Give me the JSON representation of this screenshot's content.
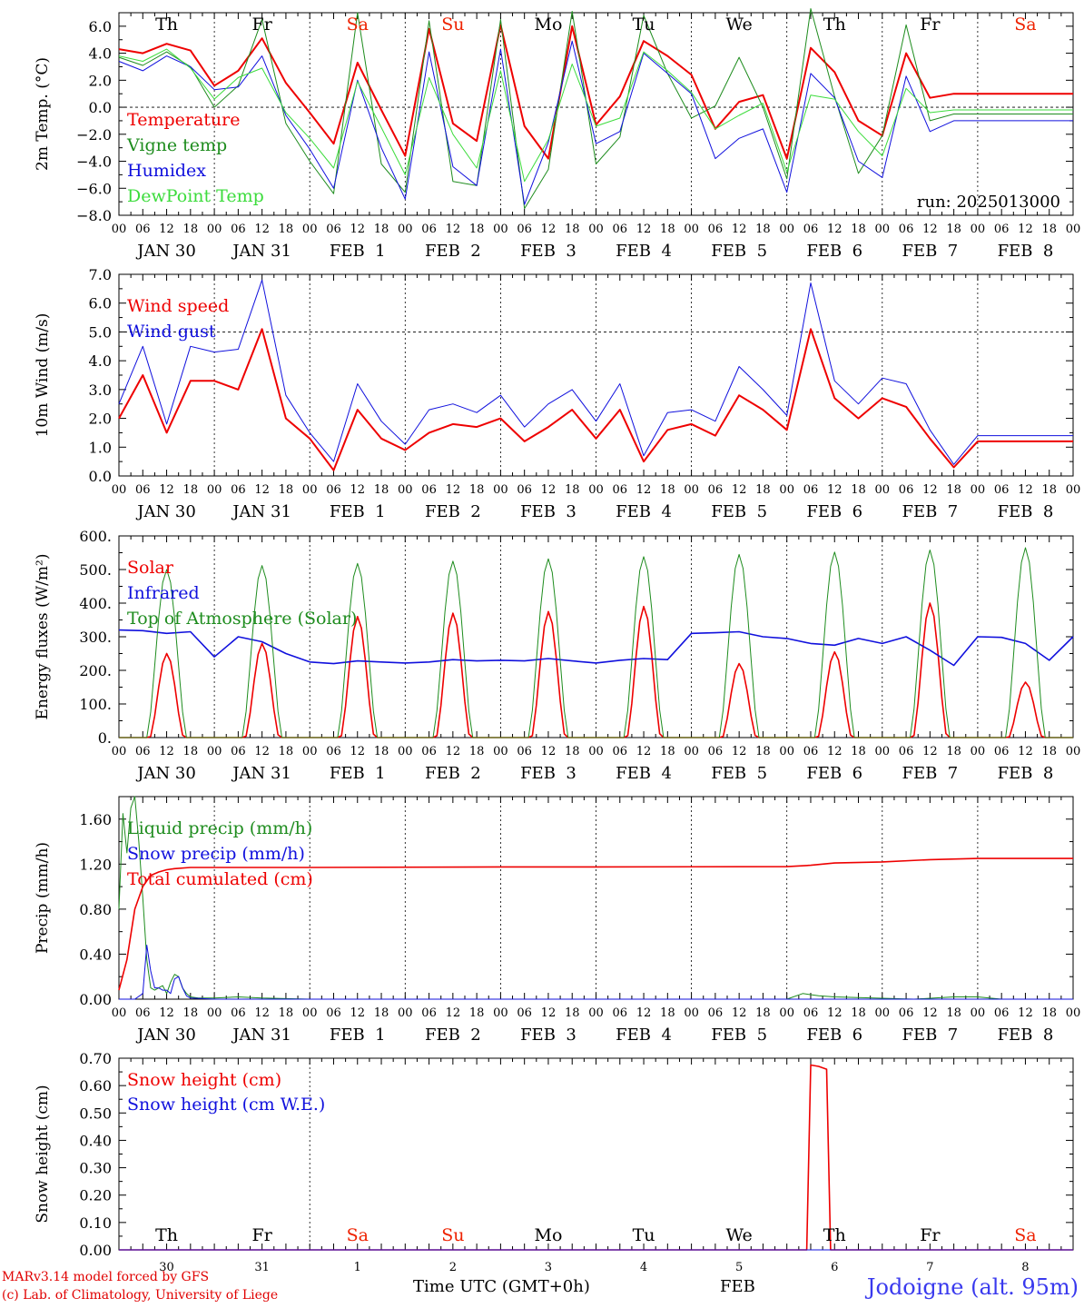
{
  "colors": {
    "red": "#ee0000",
    "green": "#1e8c1e",
    "blue": "#1010dd",
    "light_green": "#3cdc3c",
    "weekend": "#ee2200"
  },
  "day_names": [
    "Th",
    "Fr",
    "Sa",
    "Su",
    "Mo",
    "Tu",
    "We",
    "Th",
    "Fr",
    "Sa"
  ],
  "weekend_flags": [
    false,
    false,
    true,
    true,
    false,
    false,
    false,
    false,
    false,
    true
  ],
  "date_labels": [
    "JAN 30",
    "JAN 31",
    "FEB  1",
    "FEB  2",
    "FEB  3",
    "FEB  4",
    "FEB  5",
    "FEB  6",
    "FEB  7",
    "FEB  8"
  ],
  "hour_ticks": [
    "00",
    "06",
    "12",
    "18"
  ],
  "bottom_day_numbers": [
    "30",
    "31",
    "1",
    "2",
    "3",
    "4",
    "5",
    "6",
    "7",
    "8"
  ],
  "footer": {
    "model": "MARv3.14 model forced by GFS",
    "credit": "(c) Lab. of Climatology, University of Liege",
    "time_label": "Time UTC (GMT+0h)",
    "month_label": "FEB",
    "station": "Jodoigne (alt. 95m)"
  },
  "chart_data": [
    {
      "type": "line",
      "ylabel": "2m Temp. (°C)",
      "ylim": [
        -8,
        7
      ],
      "ytick_values": [
        6,
        4,
        2,
        0,
        -2,
        -4,
        -6,
        -8
      ],
      "ytick_labels": [
        "6.0",
        "4.0",
        "2.0",
        "0.0",
        "−2.0",
        "−4.0",
        "−6.0",
        "−8.0"
      ],
      "ref_line": 0,
      "annotation": "run: 2025013000",
      "x_hours": [
        0,
        6,
        12,
        18,
        24,
        30,
        36,
        42,
        48,
        54,
        60,
        66,
        72,
        78,
        84,
        90,
        96,
        102,
        108,
        114,
        120,
        126,
        132,
        138,
        144,
        150,
        156,
        162,
        168,
        174,
        180,
        186,
        192,
        198,
        204,
        210,
        216,
        222,
        228,
        234,
        240
      ],
      "series": [
        {
          "name": "Temperature",
          "color": "red",
          "width": 2,
          "values": [
            4.3,
            4.0,
            4.7,
            4.2,
            1.6,
            2.7,
            5.1,
            1.8,
            -0.4,
            -2.7,
            3.3,
            -0.2,
            -3.6,
            5.8,
            -1.2,
            -2.5,
            6.1,
            -1.4,
            -3.8,
            6.0,
            -1.3,
            0.8,
            4.9,
            3.8,
            2.4,
            -1.6,
            0.4,
            0.9,
            -3.8,
            4.4,
            2.6,
            -1.0,
            -2.1,
            4.0,
            0.7,
            1.0,
            1.0,
            1.0,
            1.0,
            1.0,
            1.0
          ]
        },
        {
          "name": "Vigne temp",
          "color": "green",
          "width": 1,
          "values": [
            3.7,
            3.1,
            4.1,
            3.0,
            0.0,
            1.6,
            6.5,
            -1.2,
            -4.0,
            -6.4,
            7.0,
            -4.2,
            -6.3,
            6.4,
            -5.5,
            -5.8,
            6.5,
            -7.5,
            -4.6,
            7.1,
            -4.2,
            -2.2,
            6.8,
            2.5,
            -0.8,
            0.1,
            3.7,
            0.0,
            -5.3,
            7.3,
            0.8,
            -4.9,
            -2.1,
            6.1,
            -1.0,
            -0.5,
            -0.5,
            -0.5,
            -0.5,
            -0.5,
            -0.5
          ]
        },
        {
          "name": "Humidex",
          "color": "blue",
          "width": 1,
          "values": [
            3.4,
            2.7,
            3.8,
            3.0,
            1.3,
            1.5,
            3.8,
            -0.6,
            -3.1,
            -6.0,
            2.0,
            -3.0,
            -6.8,
            4.1,
            -4.4,
            -5.8,
            4.3,
            -7.2,
            -2.6,
            4.9,
            -2.7,
            -1.8,
            4.0,
            2.5,
            1.0,
            -3.8,
            -2.3,
            -1.6,
            -6.3,
            2.5,
            0.7,
            -4.0,
            -5.2,
            2.3,
            -1.8,
            -1.0,
            -1.0,
            -1.0,
            -1.0,
            -1.0,
            -1.0
          ]
        },
        {
          "name": "DewPoint Temp",
          "color": "light_green",
          "width": 1,
          "values": [
            3.8,
            3.4,
            4.3,
            2.9,
            0.6,
            2.2,
            2.9,
            -0.4,
            -2.3,
            -4.5,
            1.9,
            -1.5,
            -5.0,
            2.2,
            -2.0,
            -4.5,
            2.7,
            -5.5,
            -2.4,
            3.2,
            -1.4,
            -0.8,
            4.1,
            2.7,
            1.1,
            -1.6,
            -0.6,
            0.3,
            -4.8,
            0.9,
            0.6,
            -1.8,
            -3.6,
            1.4,
            -0.4,
            -0.2,
            -0.2,
            -0.2,
            -0.2,
            -0.2,
            -0.2
          ]
        }
      ]
    },
    {
      "type": "line",
      "ylabel": "10m Wind (m/s)",
      "ylim": [
        0,
        7
      ],
      "ytick_values": [
        7,
        6,
        5,
        4,
        3,
        2,
        1,
        0
      ],
      "ytick_labels": [
        "7.0",
        "6.0",
        "5.0",
        "4.0",
        "3.0",
        "2.0",
        "1.0",
        "0.0"
      ],
      "ref_line": 5,
      "x_hours": [
        0,
        6,
        12,
        18,
        24,
        30,
        36,
        42,
        48,
        54,
        60,
        66,
        72,
        78,
        84,
        90,
        96,
        102,
        108,
        114,
        120,
        126,
        132,
        138,
        144,
        150,
        156,
        162,
        168,
        174,
        180,
        186,
        192,
        198,
        204,
        210,
        216,
        222,
        228,
        234,
        240
      ],
      "series": [
        {
          "name": "Wind speed",
          "color": "red",
          "width": 2,
          "values": [
            2.0,
            3.5,
            1.5,
            3.3,
            3.3,
            3.0,
            5.1,
            2.0,
            1.3,
            0.2,
            2.3,
            1.3,
            0.9,
            1.5,
            1.8,
            1.7,
            2.0,
            1.2,
            1.7,
            2.3,
            1.3,
            2.3,
            0.5,
            1.6,
            1.8,
            1.4,
            2.8,
            2.3,
            1.6,
            5.1,
            2.7,
            2.0,
            2.7,
            2.4,
            1.3,
            0.3,
            1.2,
            1.2,
            1.2,
            1.2,
            1.2
          ]
        },
        {
          "name": "Wind gust",
          "color": "blue",
          "width": 1,
          "values": [
            2.5,
            4.5,
            1.8,
            4.5,
            4.3,
            4.4,
            6.8,
            2.8,
            1.5,
            0.5,
            3.2,
            1.9,
            1.1,
            2.3,
            2.5,
            2.2,
            2.8,
            1.7,
            2.5,
            3.0,
            1.9,
            3.2,
            0.7,
            2.2,
            2.3,
            1.9,
            3.8,
            3.0,
            2.1,
            6.7,
            3.3,
            2.5,
            3.4,
            3.2,
            1.6,
            0.4,
            1.4,
            1.4,
            1.4,
            1.4,
            1.4
          ]
        }
      ]
    },
    {
      "type": "line",
      "ylabel": "Energy fluxes (W/m²)",
      "ylim": [
        0,
        600
      ],
      "ytick_values": [
        600,
        500,
        400,
        300,
        200,
        100,
        0
      ],
      "ytick_labels": [
        "600.",
        "500.",
        "400.",
        "300.",
        "200.",
        "100.",
        "0."
      ],
      "diurnal": true,
      "daily_solar_peak": [
        250,
        280,
        360,
        370,
        375,
        390,
        220,
        255,
        400,
        165
      ],
      "daily_toa_peak": [
        500,
        512,
        518,
        525,
        532,
        538,
        545,
        552,
        558,
        565
      ],
      "series": [
        {
          "name": "Solar",
          "color": "red",
          "width": 1.6
        },
        {
          "name": "Infrared",
          "color": "blue",
          "width": 1.6,
          "x_hours": [
            0,
            6,
            12,
            18,
            24,
            30,
            36,
            42,
            48,
            54,
            60,
            66,
            72,
            78,
            84,
            90,
            96,
            102,
            108,
            114,
            120,
            126,
            132,
            138,
            144,
            150,
            156,
            162,
            168,
            174,
            180,
            186,
            192,
            198,
            204,
            210,
            216,
            222,
            228,
            234,
            240
          ],
          "values": [
            320,
            318,
            310,
            315,
            240,
            300,
            285,
            250,
            225,
            220,
            228,
            225,
            222,
            225,
            232,
            228,
            230,
            228,
            235,
            228,
            222,
            230,
            235,
            232,
            310,
            312,
            315,
            300,
            295,
            280,
            275,
            295,
            280,
            300,
            260,
            215,
            300,
            298,
            280,
            230,
            300
          ]
        },
        {
          "name": "Top of Atmosphere (Solar)",
          "color": "green",
          "width": 1
        }
      ]
    },
    {
      "type": "line",
      "ylabel": "Precip (mm/h)",
      "ylim": [
        0,
        1.8
      ],
      "ytick_values": [
        1.6,
        1.2,
        0.8,
        0.4,
        0
      ],
      "ytick_labels": [
        "1.60",
        "1.20",
        "0.80",
        "0.40",
        "0.00"
      ],
      "series": [
        {
          "name": "Liquid precip (mm/h)",
          "color": "green",
          "width": 1,
          "x_hours": [
            0,
            1,
            2,
            3,
            4,
            5,
            6,
            7,
            8,
            9,
            10,
            11,
            12,
            13,
            14,
            15,
            16,
            17,
            18,
            20,
            24,
            30,
            36,
            48,
            60,
            72,
            96,
            120,
            144,
            168,
            172,
            176,
            180,
            190,
            200,
            210,
            216,
            222,
            240
          ],
          "values": [
            0.8,
            1.65,
            1.3,
            1.7,
            1.8,
            1.4,
            0.9,
            0.35,
            0.1,
            0.08,
            0.1,
            0.12,
            0.05,
            0.15,
            0.22,
            0.2,
            0.1,
            0.05,
            0.02,
            0.01,
            0.01,
            0.02,
            0.01,
            0.0,
            0.0,
            0.0,
            0.0,
            0.0,
            0.0,
            0.0,
            0.05,
            0.03,
            0.02,
            0.01,
            0.0,
            0.02,
            0.02,
            0.0,
            0.0
          ]
        },
        {
          "name": "Snow precip (mm/h)",
          "color": "blue",
          "width": 1,
          "x_hours": [
            0,
            4,
            6,
            7,
            8,
            9,
            10,
            11,
            12,
            13,
            14,
            15,
            16,
            17,
            18,
            24,
            240
          ],
          "values": [
            0.0,
            0.0,
            0.05,
            0.48,
            0.25,
            0.1,
            0.1,
            0.08,
            0.08,
            0.05,
            0.18,
            0.2,
            0.1,
            0.03,
            0.01,
            0.0,
            0.0
          ]
        },
        {
          "name": "Total cumulated (cm)",
          "color": "red",
          "width": 1.6,
          "x_hours": [
            0,
            2,
            4,
            6,
            8,
            10,
            12,
            14,
            18,
            24,
            48,
            96,
            120,
            168,
            174,
            180,
            192,
            204,
            216,
            222,
            228,
            240
          ],
          "values": [
            0.08,
            0.35,
            0.8,
            1.0,
            1.1,
            1.13,
            1.15,
            1.16,
            1.17,
            1.17,
            1.17,
            1.175,
            1.175,
            1.178,
            1.19,
            1.21,
            1.22,
            1.24,
            1.25,
            1.25,
            1.25,
            1.25
          ]
        }
      ]
    },
    {
      "type": "line",
      "ylabel": "Snow height (cm)",
      "ylim": [
        0,
        0.7
      ],
      "ytick_values": [
        0.7,
        0.6,
        0.5,
        0.4,
        0.3,
        0.2,
        0.1,
        0
      ],
      "ytick_labels": [
        "0.70",
        "0.60",
        "0.50",
        "0.40",
        "0.30",
        "0.20",
        "0.10",
        "0.00"
      ],
      "series": [
        {
          "name": "Snow height (cm)",
          "color": "red",
          "width": 1.6,
          "x_hours": [
            0,
            173,
            174,
            176,
            178,
            179,
            180,
            240
          ],
          "values": [
            0,
            0,
            0.675,
            0.67,
            0.66,
            0.0,
            0,
            0
          ]
        },
        {
          "name": "Snow height (cm W.E.)",
          "color": "blue",
          "width": 1,
          "x_hours": [
            0,
            240
          ],
          "values": [
            0,
            0
          ]
        }
      ]
    }
  ]
}
